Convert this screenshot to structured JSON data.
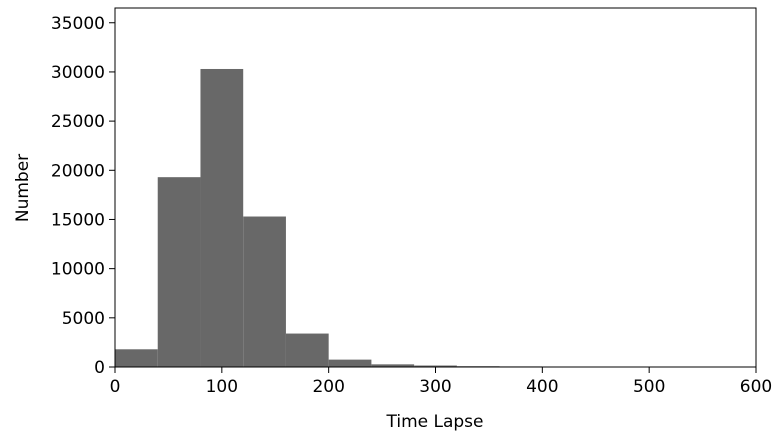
{
  "chart_data": {
    "type": "bar",
    "title": "",
    "xlabel": "Time Lapse",
    "ylabel": "Number",
    "xlim": [
      0,
      600
    ],
    "ylim": [
      0,
      36500
    ],
    "xticks": [
      0,
      100,
      200,
      300,
      400,
      500,
      600
    ],
    "xtick_labels": [
      "0",
      "100",
      "200",
      "300",
      "400",
      "500",
      "600"
    ],
    "yticks": [
      0,
      5000,
      10000,
      15000,
      20000,
      25000,
      30000,
      35000
    ],
    "ytick_labels": [
      "0",
      "5000",
      "10000",
      "15000",
      "20000",
      "25000",
      "30000",
      "35000"
    ],
    "bin_edges": [
      0,
      40,
      80,
      120,
      160,
      200,
      240,
      280,
      320,
      360,
      400,
      440,
      480,
      520,
      560,
      600
    ],
    "values": [
      1800,
      19300,
      30300,
      15300,
      3400,
      750,
      270,
      150,
      80,
      60,
      0,
      0,
      0,
      0,
      0
    ],
    "bar_color": "#686868",
    "grid": false,
    "legend": "none"
  }
}
